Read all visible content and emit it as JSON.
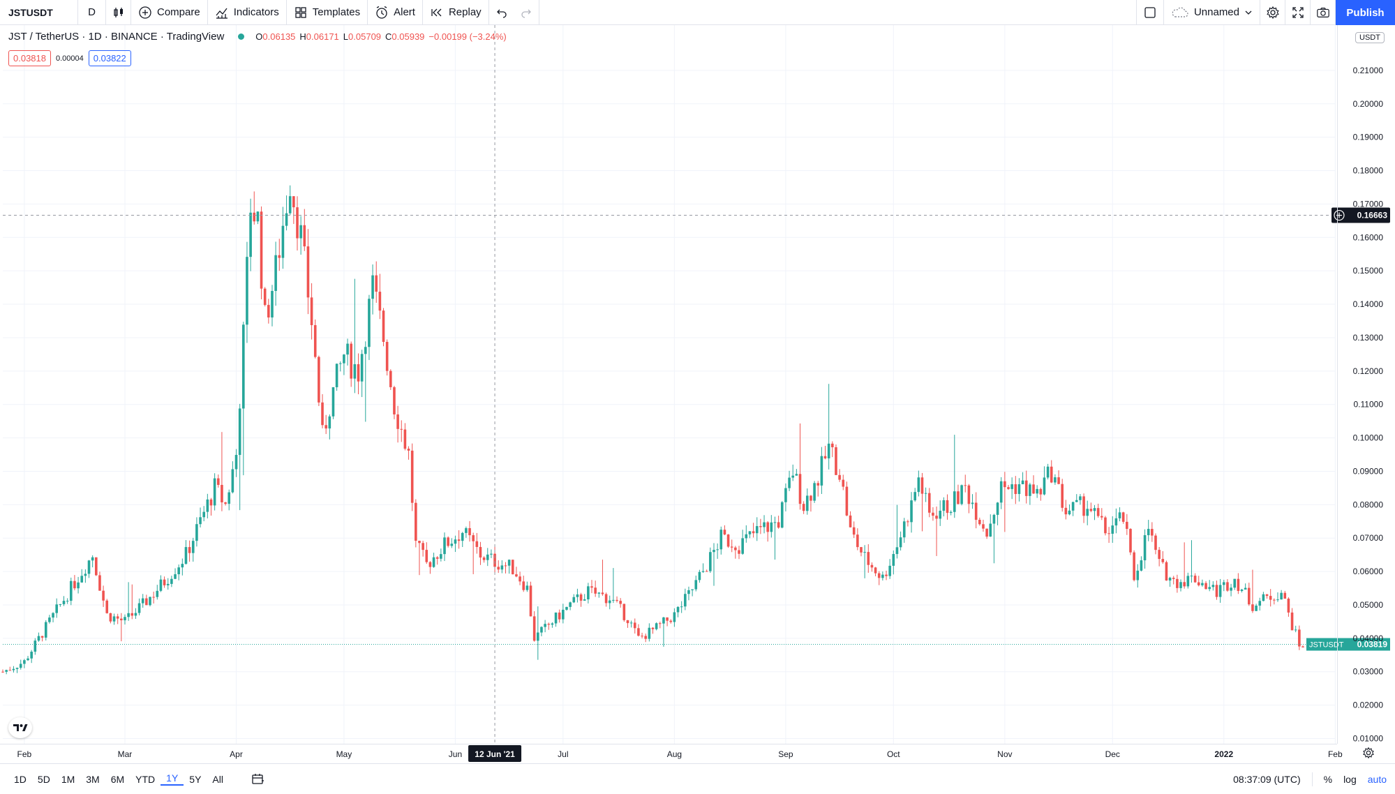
{
  "toolbar": {
    "symbol": "JSTUSDT",
    "interval": "D",
    "compare_label": "Compare",
    "indicators_label": "Indicators",
    "templates_label": "Templates",
    "alert_label": "Alert",
    "replay_label": "Replay",
    "layout_name": "Unnamed",
    "publish_label": "Publish",
    "icons": [
      "candles-icon",
      "compare-plus-icon",
      "indicators-icon",
      "templates-icon",
      "alert-clock-icon",
      "replay-icon",
      "undo-icon",
      "redo-icon",
      "layout-square-icon",
      "cloud-icon",
      "settings-gear-icon",
      "fullscreen-icon",
      "camera-icon"
    ]
  },
  "legend": {
    "title": "JST / TetherUS · 1D · BINANCE · TradingView",
    "status_color": "#26a69a",
    "open_label": "O",
    "open": "0.06135",
    "high_label": "H",
    "high": "0.06171",
    "low_label": "L",
    "low": "0.05709",
    "close_label": "C",
    "close": "0.05939",
    "change": "−0.00199 (−3.24%)",
    "sell": "0.03818",
    "spread": "0.00004",
    "buy": "0.03822"
  },
  "price_axis": {
    "unit": "USDT",
    "ticks": [
      "0.21000",
      "0.20000",
      "0.19000",
      "0.18000",
      "0.17000",
      "0.16000",
      "0.15000",
      "0.14000",
      "0.13000",
      "0.12000",
      "0.11000",
      "0.10000",
      "0.09000",
      "0.08000",
      "0.07000",
      "0.06000",
      "0.05000",
      "0.04000",
      "0.03000",
      "0.02000",
      "0.01000"
    ],
    "crosshair_label": "0.16663",
    "last_symbol": "JSTUSDT",
    "last_price": "0.03819"
  },
  "time_axis": {
    "labels": [
      "Feb",
      "Mar",
      "Apr",
      "May",
      "Jun",
      "Jul",
      "Aug",
      "Sep",
      "Oct",
      "Nov",
      "Dec",
      "2022",
      "Feb"
    ],
    "crosshair_label": "12 Jun '21"
  },
  "bottom_bar": {
    "ranges": [
      "1D",
      "5D",
      "1M",
      "3M",
      "6M",
      "YTD",
      "1Y",
      "5Y",
      "All"
    ],
    "active_range": "1Y",
    "clock": "08:37:09 (UTC)",
    "percent_label": "%",
    "log_label": "log",
    "auto_label": "auto"
  },
  "colors": {
    "up": "#26a69a",
    "down": "#ef5350",
    "accent": "#2962ff"
  },
  "chart_data": {
    "type": "candlestick",
    "title": "JST / TetherUS · 1D · BINANCE",
    "ylabel": "USDT",
    "ylim": [
      0.01,
      0.21
    ],
    "x_ticks": [
      "Feb",
      "Mar",
      "Apr",
      "May",
      "Jun",
      "Jul",
      "Aug",
      "Sep",
      "Oct",
      "Nov",
      "Dec",
      "2022",
      "Feb"
    ],
    "grid": true,
    "crosshair": {
      "date": "12 Jun '21",
      "price": 0.16663
    },
    "last_price": 0.03819,
    "close_series": [
      [
        "2021-01-26",
        0.03
      ],
      [
        "2021-02-01",
        0.033
      ],
      [
        "2021-02-08",
        0.045
      ],
      [
        "2021-02-14",
        0.055
      ],
      [
        "2021-02-20",
        0.065
      ],
      [
        "2021-02-24",
        0.047
      ],
      [
        "2021-03-01",
        0.045
      ],
      [
        "2021-03-06",
        0.05
      ],
      [
        "2021-03-12",
        0.057
      ],
      [
        "2021-03-18",
        0.065
      ],
      [
        "2021-03-22",
        0.075
      ],
      [
        "2021-03-26",
        0.085
      ],
      [
        "2021-03-29",
        0.08
      ],
      [
        "2021-04-01",
        0.095
      ],
      [
        "2021-04-03",
        0.13
      ],
      [
        "2021-04-05",
        0.17
      ],
      [
        "2021-04-07",
        0.165
      ],
      [
        "2021-04-09",
        0.135
      ],
      [
        "2021-04-12",
        0.15
      ],
      [
        "2021-04-16",
        0.178
      ],
      [
        "2021-04-19",
        0.16
      ],
      [
        "2021-04-22",
        0.135
      ],
      [
        "2021-04-25",
        0.1
      ],
      [
        "2021-04-27",
        0.11
      ],
      [
        "2021-05-01",
        0.125
      ],
      [
        "2021-05-05",
        0.12
      ],
      [
        "2021-05-09",
        0.145
      ],
      [
        "2021-05-12",
        0.13
      ],
      [
        "2021-05-15",
        0.11
      ],
      [
        "2021-05-19",
        0.095
      ],
      [
        "2021-05-21",
        0.068
      ],
      [
        "2021-05-24",
        0.062
      ],
      [
        "2021-05-29",
        0.068
      ],
      [
        "2021-06-03",
        0.072
      ],
      [
        "2021-06-08",
        0.065
      ],
      [
        "2021-06-12",
        0.063
      ],
      [
        "2021-06-17",
        0.061
      ],
      [
        "2021-06-21",
        0.055
      ],
      [
        "2021-06-23",
        0.04
      ],
      [
        "2021-06-28",
        0.045
      ],
      [
        "2021-07-03",
        0.05
      ],
      [
        "2021-07-08",
        0.054
      ],
      [
        "2021-07-14",
        0.052
      ],
      [
        "2021-07-19",
        0.046
      ],
      [
        "2021-07-22",
        0.04
      ],
      [
        "2021-07-27",
        0.043
      ],
      [
        "2021-08-01",
        0.047
      ],
      [
        "2021-08-05",
        0.053
      ],
      [
        "2021-08-09",
        0.06
      ],
      [
        "2021-08-14",
        0.07
      ],
      [
        "2021-08-19",
        0.068
      ],
      [
        "2021-08-24",
        0.072
      ],
      [
        "2021-08-30",
        0.075
      ],
      [
        "2021-09-03",
        0.09
      ],
      [
        "2021-09-06",
        0.08
      ],
      [
        "2021-09-10",
        0.088
      ],
      [
        "2021-09-13",
        0.097
      ],
      [
        "2021-09-16",
        0.09
      ],
      [
        "2021-09-19",
        0.072
      ],
      [
        "2021-09-23",
        0.064
      ],
      [
        "2021-09-28",
        0.058
      ],
      [
        "2021-10-02",
        0.068
      ],
      [
        "2021-10-06",
        0.08
      ],
      [
        "2021-10-08",
        0.088
      ],
      [
        "2021-10-11",
        0.077
      ],
      [
        "2021-10-17",
        0.08
      ],
      [
        "2021-10-21",
        0.085
      ],
      [
        "2021-10-27",
        0.072
      ],
      [
        "2021-10-31",
        0.085
      ],
      [
        "2021-11-05",
        0.086
      ],
      [
        "2021-11-10",
        0.083
      ],
      [
        "2021-11-14",
        0.09
      ],
      [
        "2021-11-18",
        0.078
      ],
      [
        "2021-11-24",
        0.08
      ],
      [
        "2021-11-29",
        0.072
      ],
      [
        "2021-12-04",
        0.076
      ],
      [
        "2021-12-07",
        0.058
      ],
      [
        "2021-12-11",
        0.073
      ],
      [
        "2021-12-14",
        0.062
      ],
      [
        "2021-12-18",
        0.057
      ],
      [
        "2021-12-24",
        0.058
      ],
      [
        "2021-12-30",
        0.054
      ],
      [
        "2022-01-04",
        0.058
      ],
      [
        "2022-01-09",
        0.05
      ],
      [
        "2022-01-13",
        0.052
      ],
      [
        "2022-01-17",
        0.054
      ],
      [
        "2022-01-20",
        0.044
      ],
      [
        "2022-01-22",
        0.038
      ],
      [
        "2022-01-23",
        0.038
      ]
    ]
  }
}
